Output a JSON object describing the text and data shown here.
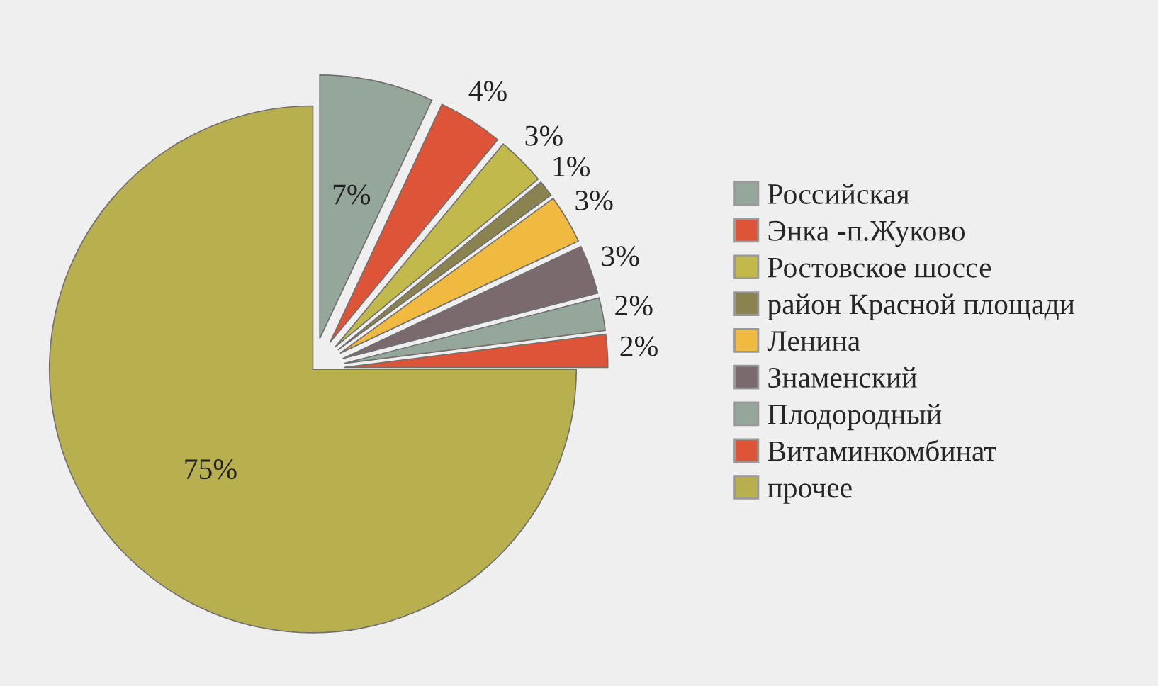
{
  "chart_data": {
    "type": "pie",
    "categories": [
      "Российская",
      "Энка -п.Жуково",
      "Ростовское шоссе",
      "район Красной площади",
      "Ленина",
      "Знаменский",
      "Плодородный",
      "Витаминкомбинат",
      "прочее"
    ],
    "values": [
      7,
      4,
      3,
      1,
      3,
      3,
      2,
      2,
      75
    ],
    "colors": [
      "#95a79b",
      "#dd5438",
      "#c2b94d",
      "#8a8350",
      "#f0b940",
      "#7a6a6e",
      "#95a79b",
      "#dd5438",
      "#b8af4f"
    ],
    "value_labels": [
      "7%",
      "4%",
      "3%",
      "1%",
      "3%",
      "3%",
      "2%",
      "2%",
      "75%"
    ],
    "legend": "right"
  }
}
